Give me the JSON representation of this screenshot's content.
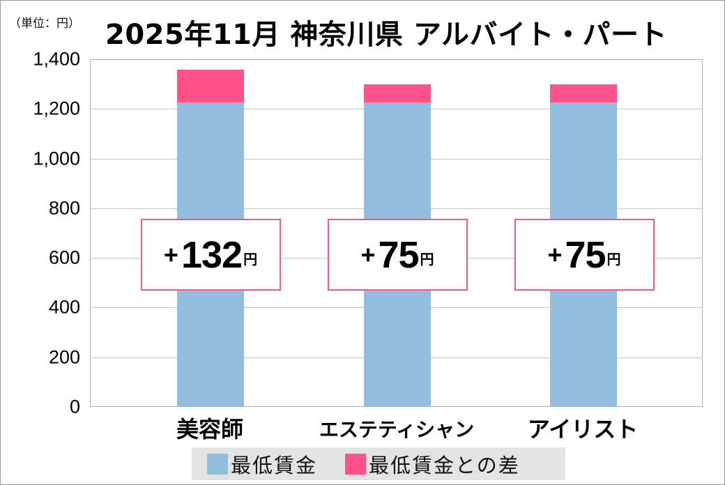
{
  "header": {
    "unit_label": "（単位：円）",
    "title": "2025年11月 神奈川県 アルバイト・パート"
  },
  "colors": {
    "base": "#92bddf",
    "diff": "#ff538a",
    "callout_border": "#ee5a8e",
    "legend_bg": "#e3e3e3",
    "grid": "#c6c6c6"
  },
  "y_axis": {
    "ticks": [
      "0",
      "200",
      "400",
      "600",
      "800",
      "1,000",
      "1,200",
      "1,400"
    ]
  },
  "categories": [
    {
      "label": "美容師",
      "callout_plus": "+",
      "callout_num": "132",
      "callout_unit": "円"
    },
    {
      "label": "エステティシャン",
      "callout_plus": "+",
      "callout_num": "75",
      "callout_unit": "円"
    },
    {
      "label": "アイリスト",
      "callout_plus": "+",
      "callout_num": "75",
      "callout_unit": "円"
    }
  ],
  "legend": {
    "items": [
      {
        "label": "最低賃金",
        "color": "#92bddf"
      },
      {
        "label": "最低賃金との差",
        "color": "#ff538a"
      }
    ]
  },
  "chart_data": {
    "type": "bar",
    "stacked": true,
    "title": "2025年11月 神奈川県 アルバイト・パート",
    "unit": "円",
    "categories": [
      "美容師",
      "エステティシャン",
      "アイリスト"
    ],
    "series": [
      {
        "name": "最低賃金",
        "values": [
          1225,
          1225,
          1225
        ],
        "color": "#92bddf"
      },
      {
        "name": "最低賃金との差",
        "values": [
          132,
          75,
          75
        ],
        "color": "#ff538a"
      }
    ],
    "annotations": [
      "+132円",
      "+75円",
      "+75円"
    ],
    "xlabel": "",
    "ylabel": "（単位：円）",
    "ylim": [
      0,
      1400
    ],
    "yticks": [
      0,
      200,
      400,
      600,
      800,
      1000,
      1200,
      1400
    ],
    "grid": true,
    "legend_position": "bottom"
  }
}
